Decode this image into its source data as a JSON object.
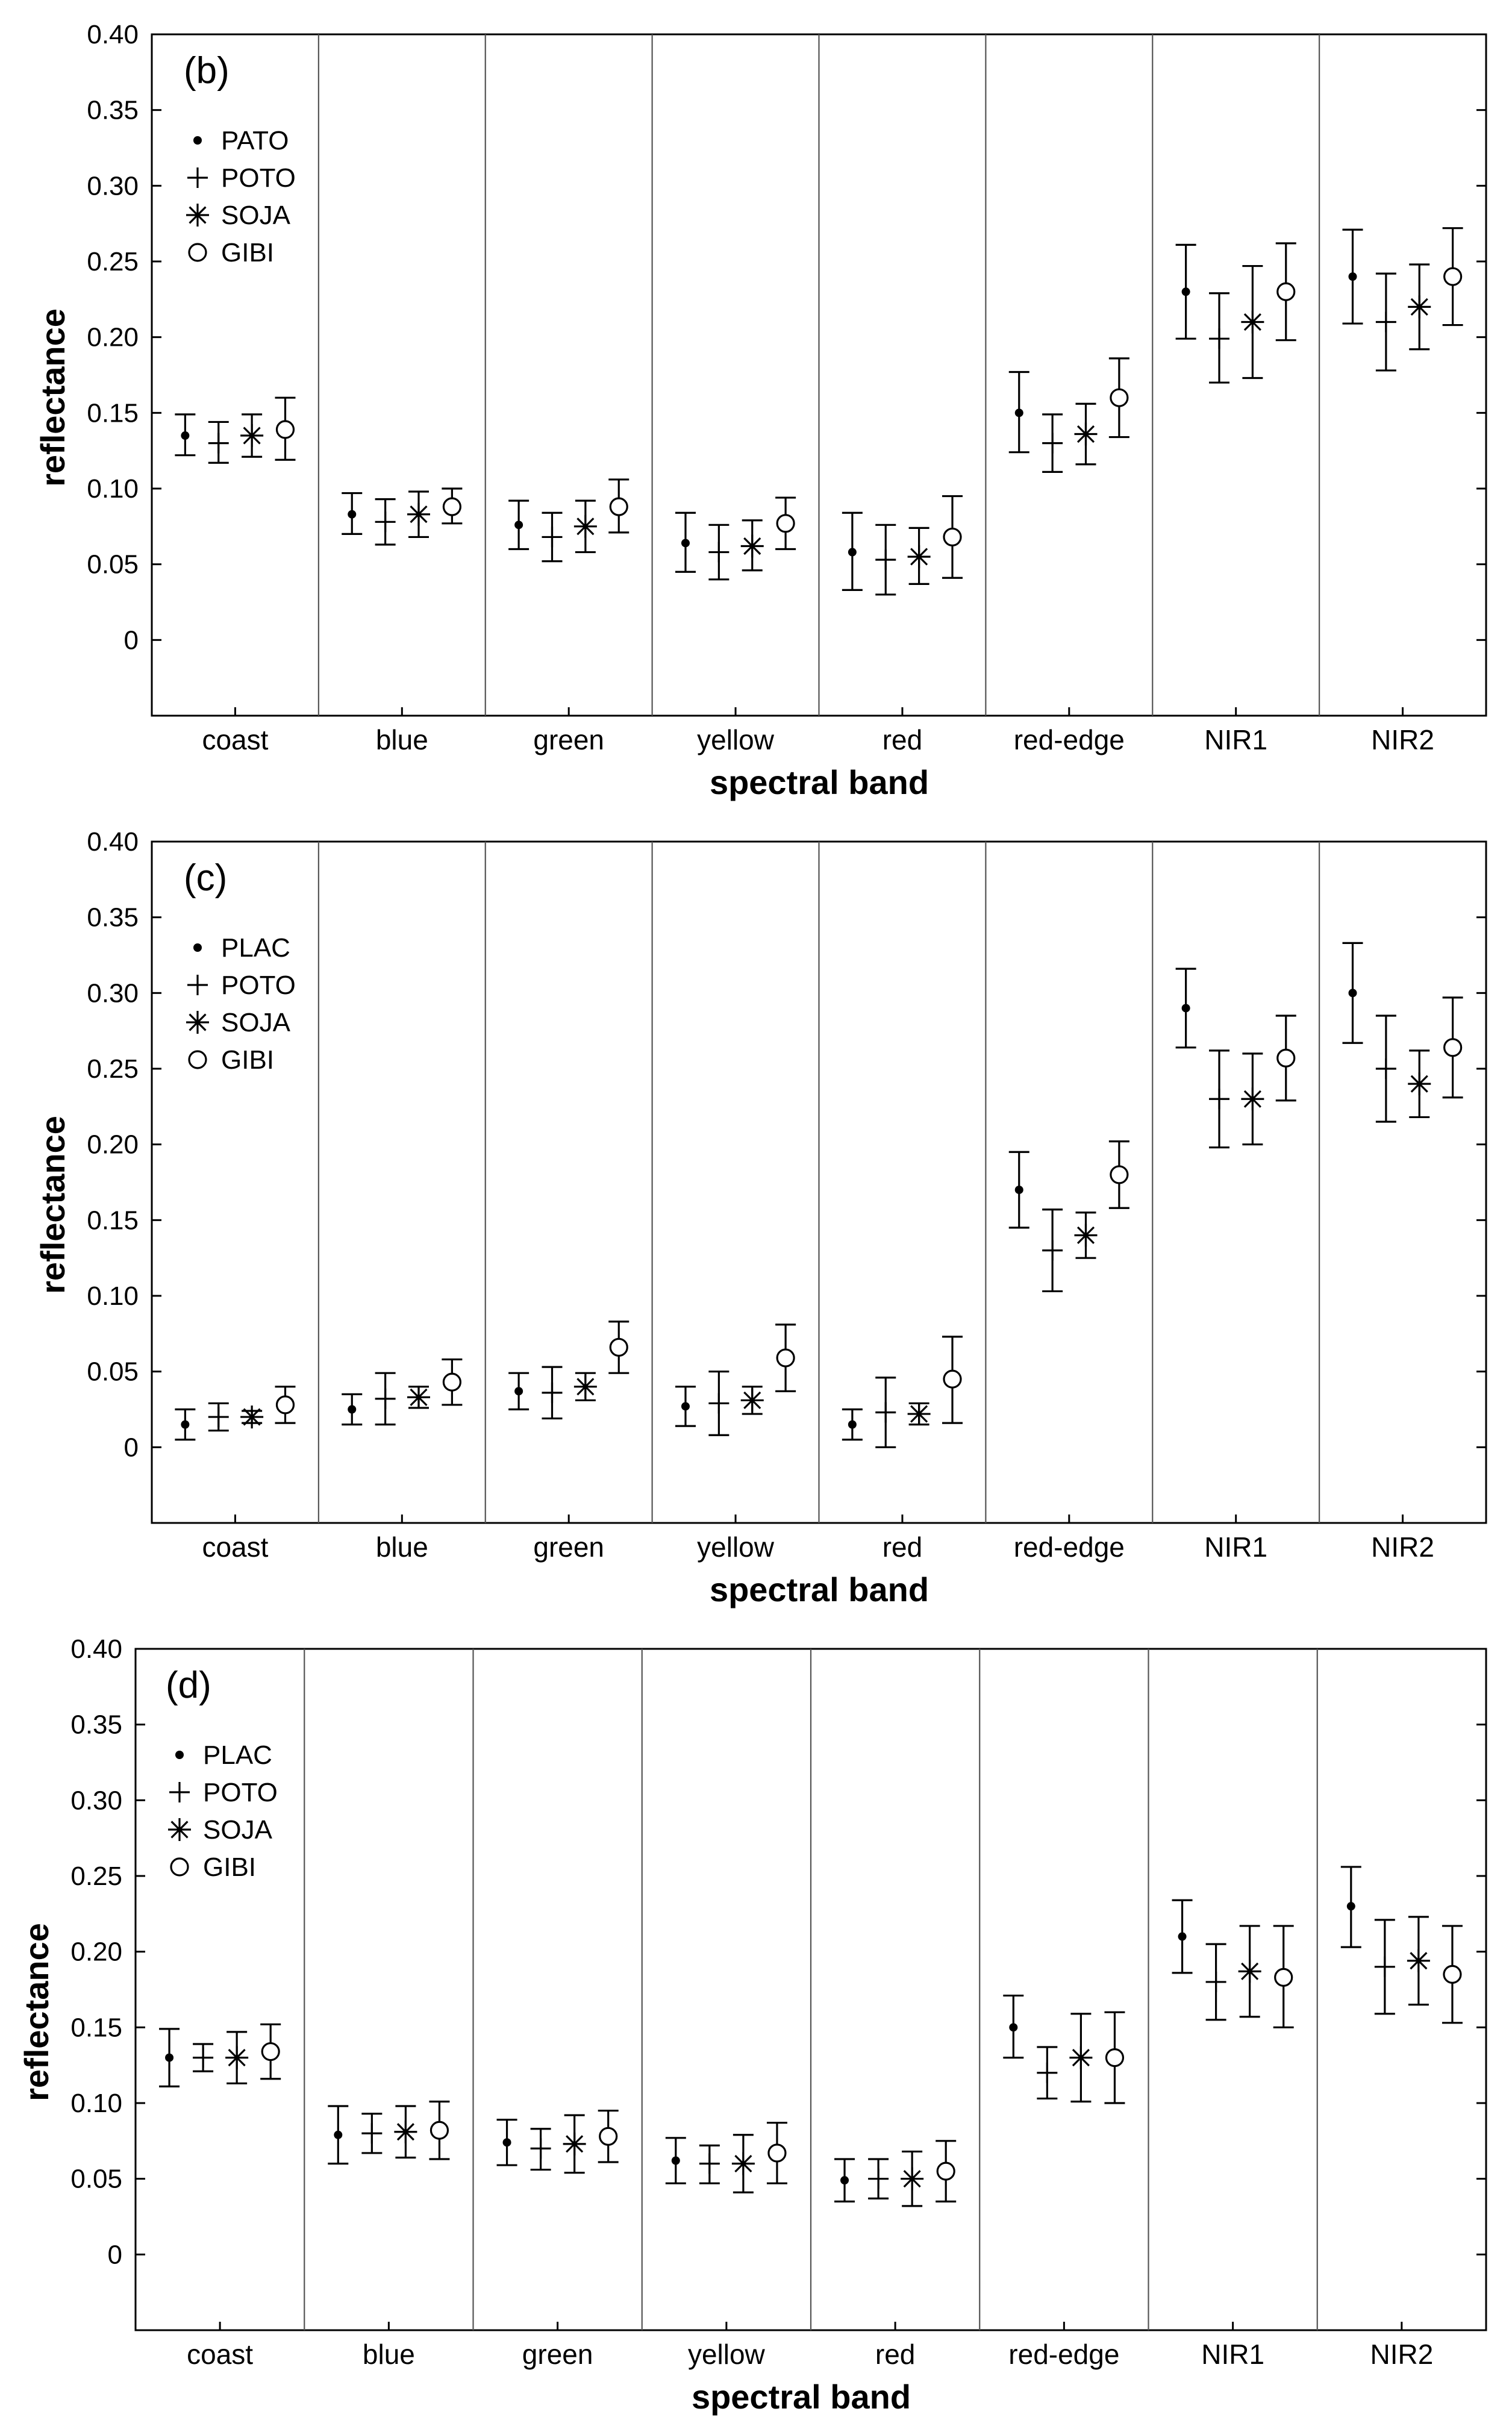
{
  "figure": {
    "panels": [
      {
        "tag": "(b)",
        "legend": [
          "PATO",
          "POTO",
          "SOJA",
          "GIBI"
        ]
      },
      {
        "tag": "(c)",
        "legend": [
          "PLAC",
          "POTO",
          "SOJA",
          "GIBI"
        ]
      },
      {
        "tag": "(d)",
        "legend": [
          "PLAC",
          "POTO",
          "SOJA",
          "GIBI"
        ]
      }
    ]
  },
  "colors": {
    "axis": "#000000",
    "separator": "#555555"
  },
  "chart_data": [
    {
      "type": "scatter",
      "title": "(b)",
      "xlabel": "spectral band",
      "ylabel": "reflectance",
      "ylim": [
        -0.05,
        0.4
      ],
      "yticks": [
        "0.40",
        "0.35",
        "0.30",
        "0.25",
        "0.20",
        "0.15",
        "0.10",
        "0.05",
        "0"
      ],
      "categories": [
        "coast",
        "blue",
        "green",
        "yellow",
        "red",
        "red-edge",
        "NIR1",
        "NIR2"
      ],
      "series": [
        {
          "name": "PATO",
          "marker": "dot",
          "values": [
            0.135,
            0.083,
            0.076,
            0.064,
            0.058,
            0.15,
            0.23,
            0.24
          ],
          "low": [
            0.122,
            0.07,
            0.06,
            0.045,
            0.033,
            0.124,
            0.199,
            0.209
          ],
          "high": [
            0.149,
            0.097,
            0.092,
            0.084,
            0.084,
            0.177,
            0.261,
            0.271
          ]
        },
        {
          "name": "POTO",
          "marker": "plus",
          "values": [
            0.13,
            0.078,
            0.068,
            0.058,
            0.053,
            0.13,
            0.199,
            0.21
          ],
          "low": [
            0.117,
            0.063,
            0.052,
            0.04,
            0.03,
            0.111,
            0.17,
            0.178
          ],
          "high": [
            0.144,
            0.093,
            0.084,
            0.076,
            0.076,
            0.149,
            0.229,
            0.242
          ]
        },
        {
          "name": "SOJA",
          "marker": "asterisk",
          "values": [
            0.135,
            0.083,
            0.075,
            0.062,
            0.055,
            0.136,
            0.21,
            0.22
          ],
          "low": [
            0.121,
            0.068,
            0.058,
            0.046,
            0.037,
            0.116,
            0.173,
            0.192
          ],
          "high": [
            0.149,
            0.098,
            0.092,
            0.079,
            0.074,
            0.156,
            0.247,
            0.248
          ]
        },
        {
          "name": "GIBI",
          "marker": "circle",
          "values": [
            0.139,
            0.088,
            0.088,
            0.077,
            0.068,
            0.16,
            0.23,
            0.24
          ],
          "low": [
            0.119,
            0.077,
            0.071,
            0.06,
            0.041,
            0.134,
            0.198,
            0.208
          ],
          "high": [
            0.16,
            0.1,
            0.106,
            0.094,
            0.095,
            0.186,
            0.262,
            0.272
          ]
        }
      ]
    },
    {
      "type": "scatter",
      "title": "(c)",
      "xlabel": "spectral band",
      "ylabel": "reflectance",
      "ylim": [
        -0.05,
        0.4
      ],
      "yticks": [
        "0.40",
        "0.35",
        "0.30",
        "0.25",
        "0.20",
        "0.15",
        "0.10",
        "0.05",
        "0"
      ],
      "categories": [
        "coast",
        "blue",
        "green",
        "yellow",
        "red",
        "red-edge",
        "NIR1",
        "NIR2"
      ],
      "series": [
        {
          "name": "PLAC",
          "marker": "dot",
          "values": [
            0.015,
            0.025,
            0.037,
            0.027,
            0.015,
            0.17,
            0.29,
            0.3
          ],
          "low": [
            0.005,
            0.015,
            0.025,
            0.014,
            0.005,
            0.145,
            0.264,
            0.267
          ],
          "high": [
            0.025,
            0.035,
            0.049,
            0.04,
            0.025,
            0.195,
            0.316,
            0.333
          ]
        },
        {
          "name": "POTO",
          "marker": "plus",
          "values": [
            0.02,
            0.032,
            0.036,
            0.029,
            0.023,
            0.13,
            0.23,
            0.25
          ],
          "low": [
            0.011,
            0.015,
            0.019,
            0.008,
            0.0,
            0.103,
            0.198,
            0.215
          ],
          "high": [
            0.029,
            0.049,
            0.053,
            0.05,
            0.046,
            0.157,
            0.262,
            0.285
          ]
        },
        {
          "name": "SOJA",
          "marker": "asterisk",
          "values": [
            0.02,
            0.033,
            0.04,
            0.031,
            0.022,
            0.14,
            0.23,
            0.24
          ],
          "low": [
            0.016,
            0.026,
            0.031,
            0.022,
            0.015,
            0.125,
            0.2,
            0.218
          ],
          "high": [
            0.024,
            0.04,
            0.049,
            0.04,
            0.029,
            0.155,
            0.26,
            0.262
          ]
        },
        {
          "name": "GIBI",
          "marker": "circle",
          "values": [
            0.028,
            0.043,
            0.066,
            0.059,
            0.045,
            0.18,
            0.257,
            0.264
          ],
          "low": [
            0.016,
            0.028,
            0.049,
            0.037,
            0.016,
            0.158,
            0.229,
            0.231
          ],
          "high": [
            0.04,
            0.058,
            0.083,
            0.081,
            0.073,
            0.202,
            0.285,
            0.297
          ]
        }
      ]
    },
    {
      "type": "scatter",
      "title": "(d)",
      "xlabel": "spectral band",
      "ylabel": "reflectance",
      "ylim": [
        -0.05,
        0.4
      ],
      "yticks": [
        "0.40",
        "0.35",
        "0.30",
        "0.25",
        "0.20",
        "0.15",
        "0.10",
        "0.05",
        "0"
      ],
      "categories": [
        "coast",
        "blue",
        "green",
        "yellow",
        "red",
        "red-edge",
        "NIR1",
        "NIR2"
      ],
      "series": [
        {
          "name": "PLAC",
          "marker": "dot",
          "values": [
            0.13,
            0.079,
            0.074,
            0.062,
            0.049,
            0.15,
            0.21,
            0.23
          ],
          "low": [
            0.111,
            0.06,
            0.059,
            0.047,
            0.035,
            0.13,
            0.186,
            0.203
          ],
          "high": [
            0.149,
            0.098,
            0.089,
            0.077,
            0.063,
            0.171,
            0.234,
            0.256
          ]
        },
        {
          "name": "POTO",
          "marker": "plus",
          "values": [
            0.13,
            0.08,
            0.07,
            0.06,
            0.05,
            0.12,
            0.18,
            0.19
          ],
          "low": [
            0.121,
            0.067,
            0.056,
            0.047,
            0.037,
            0.103,
            0.155,
            0.159
          ],
          "high": [
            0.139,
            0.093,
            0.083,
            0.072,
            0.063,
            0.137,
            0.205,
            0.221
          ]
        },
        {
          "name": "SOJA",
          "marker": "asterisk",
          "values": [
            0.13,
            0.081,
            0.073,
            0.06,
            0.05,
            0.13,
            0.187,
            0.194
          ],
          "low": [
            0.113,
            0.064,
            0.054,
            0.041,
            0.032,
            0.101,
            0.157,
            0.165
          ],
          "high": [
            0.147,
            0.098,
            0.092,
            0.079,
            0.068,
            0.159,
            0.217,
            0.223
          ]
        },
        {
          "name": "GIBI",
          "marker": "circle",
          "values": [
            0.134,
            0.082,
            0.078,
            0.067,
            0.055,
            0.13,
            0.183,
            0.185
          ],
          "low": [
            0.116,
            0.063,
            0.061,
            0.047,
            0.035,
            0.1,
            0.15,
            0.153
          ],
          "high": [
            0.152,
            0.101,
            0.095,
            0.087,
            0.075,
            0.16,
            0.217,
            0.217
          ]
        }
      ]
    }
  ]
}
